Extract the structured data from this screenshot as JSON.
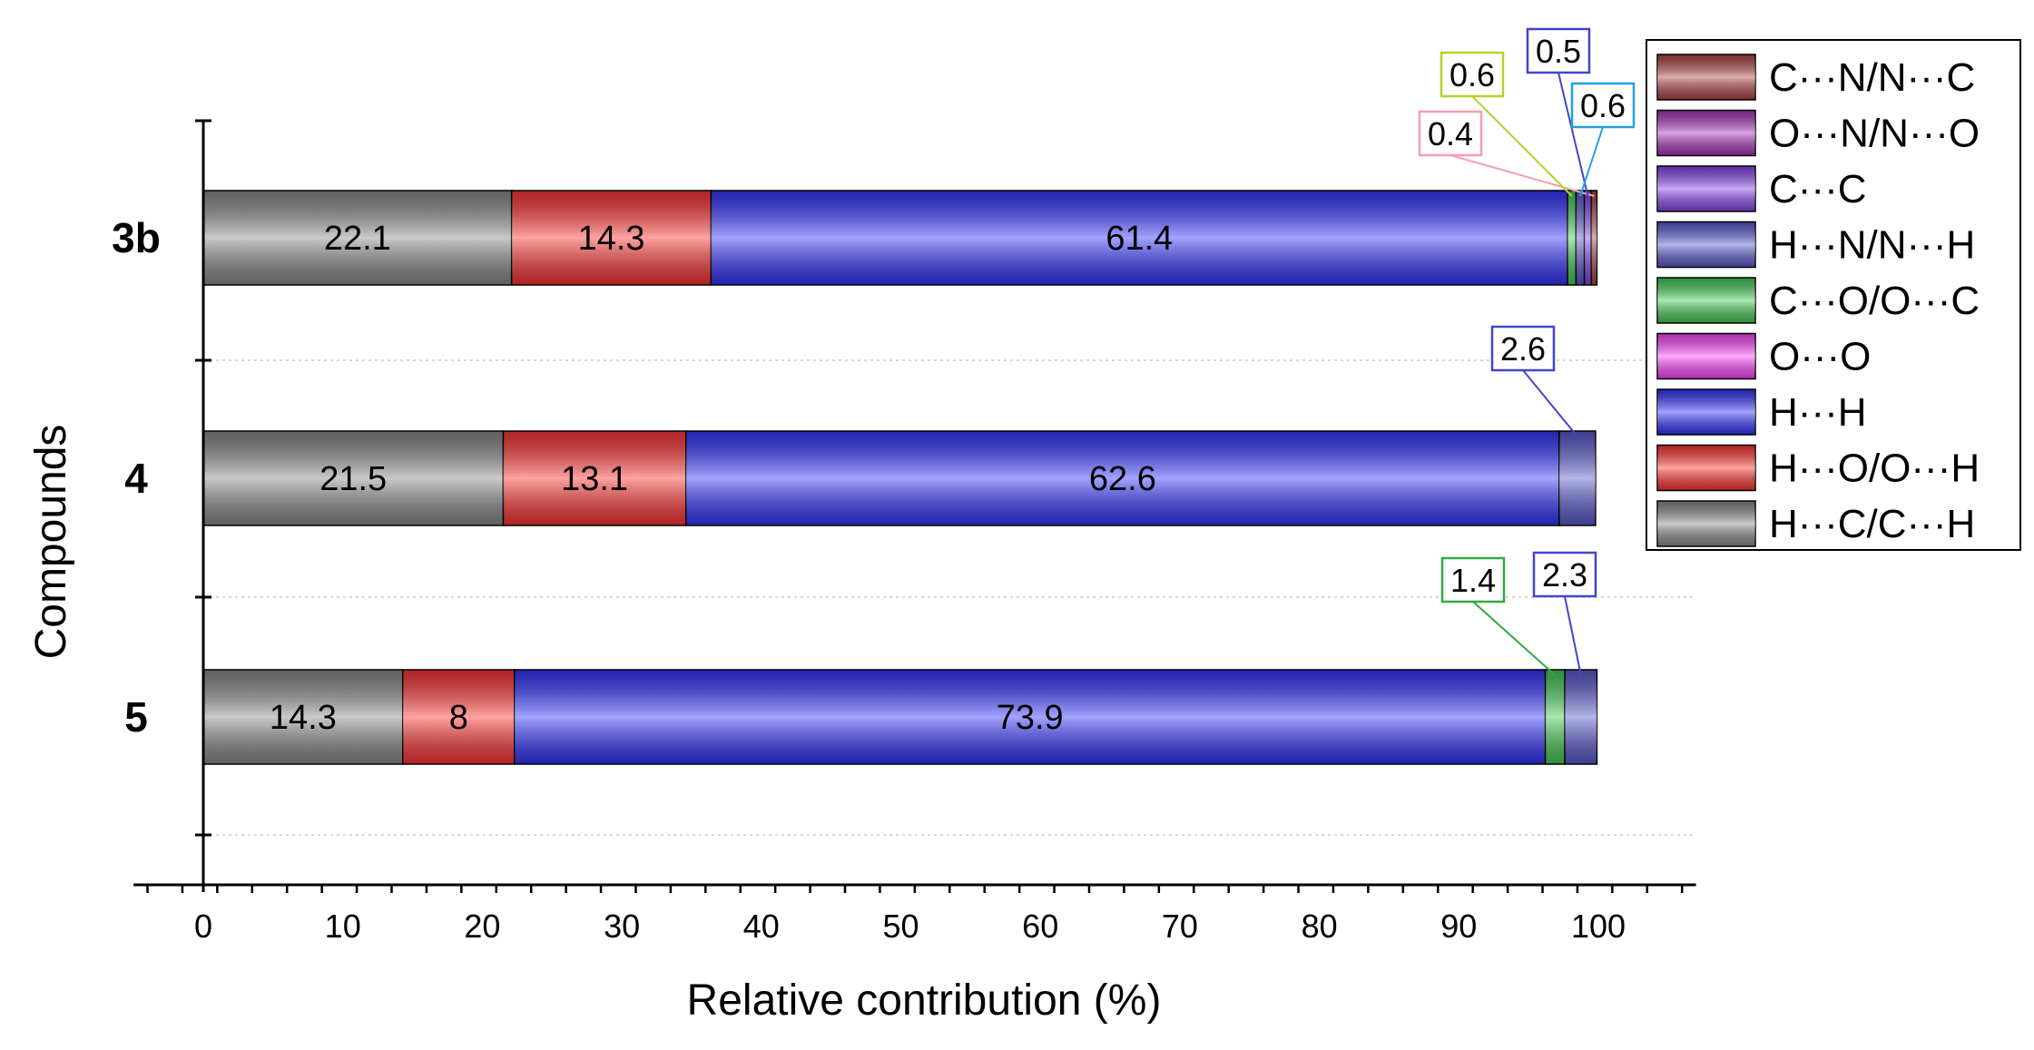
{
  "chart_data": {
    "type": "bar",
    "orientation": "horizontal",
    "stacked": true,
    "xlabel": "Relative contribution (%)",
    "ylabel": "Compounds",
    "xlim": [
      -5,
      107
    ],
    "xticks": [
      0,
      10,
      20,
      30,
      40,
      50,
      60,
      70,
      80,
      90,
      100
    ],
    "xtick_labels": [
      "0",
      "10",
      "20",
      "30",
      "40",
      "50",
      "60",
      "70",
      "80",
      "90",
      "100"
    ],
    "grid": "horizontal dotted",
    "legend_position": "top-right",
    "categories": [
      "3b",
      "4",
      "5"
    ],
    "series": [
      {
        "name": "H···C/C···H",
        "color": "#8a8a8a",
        "values": [
          22.1,
          21.5,
          14.3
        ],
        "labels": [
          "22.1",
          "21.5",
          "14.3"
        ]
      },
      {
        "name": "H···O/O···H",
        "color": "#ff3333",
        "values": [
          14.3,
          13.1,
          8
        ],
        "labels": [
          "14.3",
          "13.1",
          "8"
        ]
      },
      {
        "name": "H···H",
        "color": "#3333ff",
        "values": [
          61.4,
          62.6,
          73.9
        ],
        "labels": [
          "61.4",
          "62.6",
          "73.9"
        ]
      },
      {
        "name": "O···O",
        "color": "#ff44ff",
        "values": [
          0,
          0,
          0
        ],
        "labels": [
          "",
          "",
          ""
        ]
      },
      {
        "name": "C···O/O···C",
        "color": "#44cc55",
        "values": [
          0.6,
          0,
          1.4
        ],
        "labels": [
          "0.6",
          "",
          "1.4"
        ]
      },
      {
        "name": "H···N/N···H",
        "color": "#5a5ad0",
        "values": [
          0.6,
          2.6,
          2.3
        ],
        "labels": [
          "0.6",
          "2.6",
          "2.3"
        ]
      },
      {
        "name": "C···C",
        "color": "#8844ee",
        "values": [
          0.5,
          0,
          0
        ],
        "labels": [
          "0.5",
          "",
          ""
        ]
      },
      {
        "name": "O···N/N···O",
        "color": "#aa33bb",
        "values": [
          0,
          0,
          0
        ],
        "labels": [
          "",
          "",
          ""
        ]
      },
      {
        "name": "C···N/N···C",
        "color": "#b04444",
        "values": [
          0.4,
          0,
          0
        ],
        "labels": [
          "0.4",
          "",
          ""
        ]
      }
    ],
    "callouts": [
      {
        "category": "3b",
        "series": "C···N/N···C",
        "text": "0.4",
        "color": "#f4a0b4"
      },
      {
        "category": "3b",
        "series": "C···O/O···C",
        "text": "0.6",
        "color": "#b8d030"
      },
      {
        "category": "3b",
        "series": "C···C",
        "text": "0.5",
        "color": "#4444cc"
      },
      {
        "category": "3b",
        "series": "H···N/N···H",
        "text": "0.6",
        "color": "#22a0dd"
      },
      {
        "category": "4",
        "series": "H···N/N···H",
        "text": "2.6",
        "color": "#4444cc"
      },
      {
        "category": "5",
        "series": "C···O/O···C",
        "text": "1.4",
        "color": "#33aa44"
      },
      {
        "category": "5",
        "series": "H···N/N···H",
        "text": "2.3",
        "color": "#4444cc"
      }
    ],
    "legend_order": [
      "C···N/N···C",
      "O···N/N···O",
      "C···C",
      "H···N/N···H",
      "C···O/O···C",
      "O···O",
      "H···H",
      "H···O/O···H",
      "H···C/C···H"
    ]
  }
}
